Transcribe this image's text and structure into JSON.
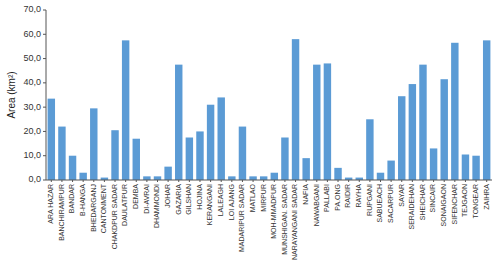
{
  "chart_data": {
    "type": "bar",
    "categories": [
      "ARA HAZAR",
      "BANCHIRAMPUR",
      "BANDAR",
      "B-HANGA",
      "BHEDARGANJ",
      "CANTONMENT",
      "CHAKDPUR SADAR",
      "DAULATPUR",
      "DEMBA",
      "DI-AVRAI",
      "DHAMMONDI",
      "JOHAR",
      "GAZARIA",
      "GILSHAN",
      "HOJINA",
      "KERANGANI",
      "LALEAGH",
      "LOI AJANG",
      "MADARIPUR SADAR",
      "MATLAO",
      "MIRPUR",
      "MOH-MMADPUR",
      "MUNSHIGAN. SADAR",
      "NARAYANGANI SADAR",
      "NAFIA",
      "NAWABGANI",
      "PALLABI",
      "PA.ONG",
      "RAIDIR",
      "RAYHA",
      "RUPGANI",
      "SABUEACH",
      "SACARPUR",
      "SAYAR",
      "SERAIDEHAN",
      "SHEICHAR",
      "SINCAIR",
      "SONAIGAON",
      "SIFENCHAR",
      "TEJGAON",
      "TONGEAR",
      "ZAIHRA"
    ],
    "values": [
      33.5,
      22.0,
      10.0,
      3.0,
      29.5,
      1.0,
      20.5,
      57.5,
      17.0,
      1.5,
      1.5,
      5.5,
      47.5,
      17.5,
      20.0,
      31.0,
      34.0,
      1.5,
      22.0,
      1.5,
      1.5,
      3.0,
      17.5,
      58.0,
      9.0,
      47.5,
      48.0,
      5.0,
      1.0,
      1.0,
      25.0,
      3.0,
      8.0,
      34.5,
      39.5,
      47.5,
      13.0,
      41.5,
      56.5,
      10.5,
      10.0,
      57.5
    ],
    "color": "#5B9BD5",
    "ylabel": "Area (km²)",
    "ylim": [
      0,
      70
    ],
    "yticks": [
      {
        "value": 0,
        "label": "0,0"
      },
      {
        "value": 10,
        "label": "10,0"
      },
      {
        "value": 20,
        "label": "20,0"
      },
      {
        "value": 30,
        "label": "30,0"
      },
      {
        "value": 40,
        "label": "40,0"
      },
      {
        "value": 50,
        "label": "50,0"
      },
      {
        "value": 60,
        "label": "60,0"
      },
      {
        "value": 70,
        "label": "70,0"
      }
    ],
    "grid": false
  }
}
